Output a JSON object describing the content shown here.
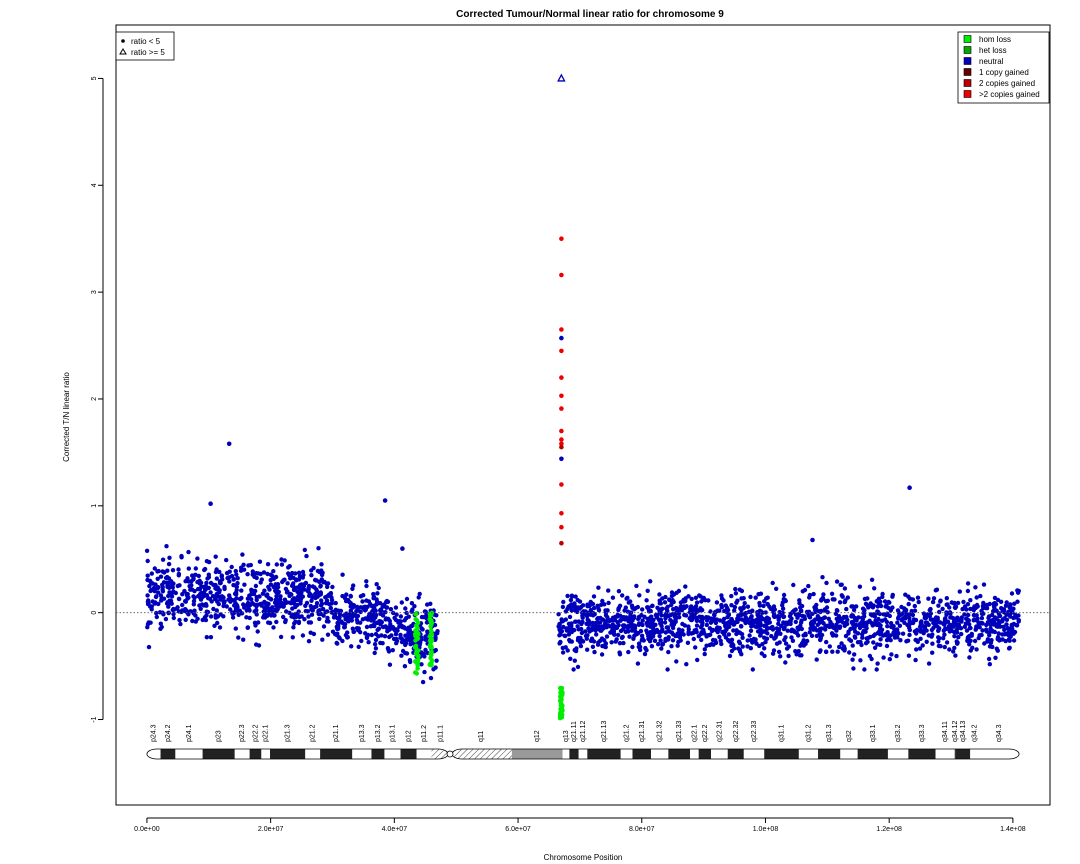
{
  "chart_data": {
    "type": "scatter",
    "title": "Corrected Tumour/Normal linear ratio for chromosome  9",
    "xlabel": "Chromosome Position",
    "ylabel": "Corrected T/N linear ratio",
    "xlim": [
      -5000000,
      146000000
    ],
    "ylim": [
      -1.8,
      5.5
    ],
    "x_ticks": [
      0,
      20000000,
      40000000,
      60000000,
      80000000,
      100000000,
      120000000,
      140000000
    ],
    "x_tick_labels": [
      "0.0e+00",
      "2.0e+07",
      "4.0e+07",
      "6.0e+07",
      "8.0e+07",
      "1.0e+08",
      "1.2e+08",
      "1.4e+08"
    ],
    "y_ticks": [
      -1,
      0,
      1,
      2,
      3,
      4,
      5
    ],
    "y_tick_labels": [
      "-1",
      "0",
      "1",
      "2",
      "3",
      "4",
      "5"
    ],
    "reference_line": 0,
    "shape_legend": {
      "placement": "top-left",
      "entries": [
        {
          "label": "ratio < 5",
          "shape": "dot"
        },
        {
          "label": "ratio >= 5",
          "shape": "triangle"
        }
      ]
    },
    "color_legend": {
      "placement": "top-right",
      "entries": [
        {
          "label": "hom loss",
          "color": "#00ee00"
        },
        {
          "label": "het loss",
          "color": "#00aa00"
        },
        {
          "label": "neutral",
          "color": "#0000bb"
        },
        {
          "label": "1 copy gained",
          "color": "#660000"
        },
        {
          "label": "2 copies gained",
          "color": "#bb0000"
        },
        {
          "label": ">2 copies gained",
          "color": "#ee0000"
        }
      ]
    },
    "segments": [
      {
        "start": 0,
        "end": 30000000,
        "mean": 0.15,
        "spread": 0.35,
        "status": "neutral"
      },
      {
        "start": 30000000,
        "end": 39000000,
        "mean": -0.05,
        "spread": 0.3,
        "status": "neutral"
      },
      {
        "start": 39000000,
        "end": 47000000,
        "mean": -0.2,
        "spread": 0.35,
        "status": "neutral"
      },
      {
        "start": 66500000,
        "end": 141000000,
        "mean": -0.1,
        "spread": 0.32,
        "status": "neutral"
      }
    ],
    "points": [
      {
        "x": 13300000,
        "y": 1.58,
        "status": "neutral"
      },
      {
        "x": 38500000,
        "y": 1.05,
        "status": "neutral"
      },
      {
        "x": 10300000,
        "y": 1.02,
        "status": "neutral"
      },
      {
        "x": 123300000,
        "y": 1.17,
        "status": "neutral"
      },
      {
        "x": 107600000,
        "y": 0.68,
        "status": "neutral"
      },
      {
        "x": 41300000,
        "y": 0.6,
        "status": "neutral"
      },
      {
        "x": 67000000,
        "y": 5.0,
        "status": "neutral",
        "shape": "triangle"
      },
      {
        "x": 67000000,
        "y": 3.5,
        "status": ">2 copies gained"
      },
      {
        "x": 67000000,
        "y": 3.16,
        "status": ">2 copies gained"
      },
      {
        "x": 67000000,
        "y": 2.65,
        "status": ">2 copies gained"
      },
      {
        "x": 67000000,
        "y": 2.57,
        "status": "neutral"
      },
      {
        "x": 67000000,
        "y": 2.45,
        "status": ">2 copies gained"
      },
      {
        "x": 67000000,
        "y": 2.2,
        "status": ">2 copies gained"
      },
      {
        "x": 67000000,
        "y": 2.03,
        "status": ">2 copies gained"
      },
      {
        "x": 67000000,
        "y": 1.91,
        "status": ">2 copies gained"
      },
      {
        "x": 67000000,
        "y": 1.7,
        "status": ">2 copies gained"
      },
      {
        "x": 67000000,
        "y": 1.62,
        "status": ">2 copies gained"
      },
      {
        "x": 67000000,
        "y": 1.58,
        "status": ">2 copies gained"
      },
      {
        "x": 67000000,
        "y": 1.55,
        "status": "2 copies gained"
      },
      {
        "x": 67000000,
        "y": 1.44,
        "status": "neutral"
      },
      {
        "x": 67000000,
        "y": 1.2,
        "status": ">2 copies gained"
      },
      {
        "x": 67000000,
        "y": 0.93,
        "status": ">2 copies gained"
      },
      {
        "x": 67000000,
        "y": 0.8,
        "status": ">2 copies gained"
      },
      {
        "x": 67000000,
        "y": 0.65,
        "status": "2 copies gained"
      }
    ],
    "hom_loss_clusters": [
      {
        "x_start": 43300000,
        "x_end": 43900000,
        "y_min": -0.6,
        "y_max": 0.0
      },
      {
        "x_start": 45700000,
        "x_end": 46100000,
        "y_min": -0.5,
        "y_max": 0.0
      },
      {
        "x_start": 66800000,
        "x_end": 67200000,
        "y_min": -0.99,
        "y_max": -0.7
      }
    ],
    "ideogram": {
      "length": 141000000,
      "centromere": 49000000,
      "bands": [
        {
          "name": "p24.3",
          "start": 0,
          "end": 2200000,
          "stain": "white"
        },
        {
          "name": "p24.2",
          "start": 2200000,
          "end": 4600000,
          "stain": "black"
        },
        {
          "name": "p24.1",
          "start": 4600000,
          "end": 9000000,
          "stain": "white"
        },
        {
          "name": "p23",
          "start": 9000000,
          "end": 14200000,
          "stain": "black"
        },
        {
          "name": "p22.3",
          "start": 14200000,
          "end": 16600000,
          "stain": "white"
        },
        {
          "name": "p22.2",
          "start": 16600000,
          "end": 18500000,
          "stain": "black"
        },
        {
          "name": "p22.1",
          "start": 18500000,
          "end": 19900000,
          "stain": "white"
        },
        {
          "name": "p21.3",
          "start": 19900000,
          "end": 25600000,
          "stain": "black"
        },
        {
          "name": "p21.2",
          "start": 25600000,
          "end": 28000000,
          "stain": "white"
        },
        {
          "name": "p21.1",
          "start": 28000000,
          "end": 33200000,
          "stain": "black"
        },
        {
          "name": "p13.3",
          "start": 33200000,
          "end": 36300000,
          "stain": "white"
        },
        {
          "name": "p13.2",
          "start": 36300000,
          "end": 38400000,
          "stain": "black"
        },
        {
          "name": "p13.1",
          "start": 38400000,
          "end": 41000000,
          "stain": "white"
        },
        {
          "name": "p12",
          "start": 41000000,
          "end": 43600000,
          "stain": "black"
        },
        {
          "name": "p11.2",
          "start": 43600000,
          "end": 46000000,
          "stain": "white"
        },
        {
          "name": "p11.1",
          "start": 46000000,
          "end": 49000000,
          "stain": "hatched"
        },
        {
          "name": "q11",
          "start": 49000000,
          "end": 59000000,
          "stain": "hatched"
        },
        {
          "name": "q12",
          "start": 59000000,
          "end": 67200000,
          "stain": "gray"
        },
        {
          "name": "q13",
          "start": 67200000,
          "end": 68300000,
          "stain": "white"
        },
        {
          "name": "q21.11",
          "start": 68300000,
          "end": 69800000,
          "stain": "black"
        },
        {
          "name": "q21.12",
          "start": 69800000,
          "end": 71200000,
          "stain": "white"
        },
        {
          "name": "q21.13",
          "start": 71200000,
          "end": 76600000,
          "stain": "black"
        },
        {
          "name": "q21.2",
          "start": 76600000,
          "end": 78500000,
          "stain": "white"
        },
        {
          "name": "q21.31",
          "start": 78500000,
          "end": 81500000,
          "stain": "black"
        },
        {
          "name": "q21.32",
          "start": 81500000,
          "end": 84300000,
          "stain": "white"
        },
        {
          "name": "q21.33",
          "start": 84300000,
          "end": 87800000,
          "stain": "black"
        },
        {
          "name": "q22.1",
          "start": 87800000,
          "end": 89200000,
          "stain": "white"
        },
        {
          "name": "q22.2",
          "start": 89200000,
          "end": 91200000,
          "stain": "black"
        },
        {
          "name": "q22.31",
          "start": 91200000,
          "end": 93900000,
          "stain": "white"
        },
        {
          "name": "q22.32",
          "start": 93900000,
          "end": 96500000,
          "stain": "black"
        },
        {
          "name": "q22.33",
          "start": 96500000,
          "end": 99800000,
          "stain": "white"
        },
        {
          "name": "q31.1",
          "start": 99800000,
          "end": 105400000,
          "stain": "black"
        },
        {
          "name": "q31.2",
          "start": 105400000,
          "end": 108500000,
          "stain": "white"
        },
        {
          "name": "q31.3",
          "start": 108500000,
          "end": 112100000,
          "stain": "black"
        },
        {
          "name": "q32",
          "start": 112100000,
          "end": 114900000,
          "stain": "white"
        },
        {
          "name": "q33.1",
          "start": 114900000,
          "end": 119800000,
          "stain": "black"
        },
        {
          "name": "q33.2",
          "start": 119800000,
          "end": 123100000,
          "stain": "white"
        },
        {
          "name": "q33.3",
          "start": 123100000,
          "end": 127500000,
          "stain": "black"
        },
        {
          "name": "q34.11",
          "start": 127500000,
          "end": 130600000,
          "stain": "white"
        },
        {
          "name": "q34.12",
          "start": 130600000,
          "end": 130700000,
          "stain": "black"
        },
        {
          "name": "q34.13",
          "start": 130700000,
          "end": 133100000,
          "stain": "black"
        },
        {
          "name": "q34.2",
          "start": 133100000,
          "end": 134500000,
          "stain": "white"
        },
        {
          "name": "q34.3",
          "start": 134500000,
          "end": 141000000,
          "stain": "white"
        }
      ]
    }
  }
}
